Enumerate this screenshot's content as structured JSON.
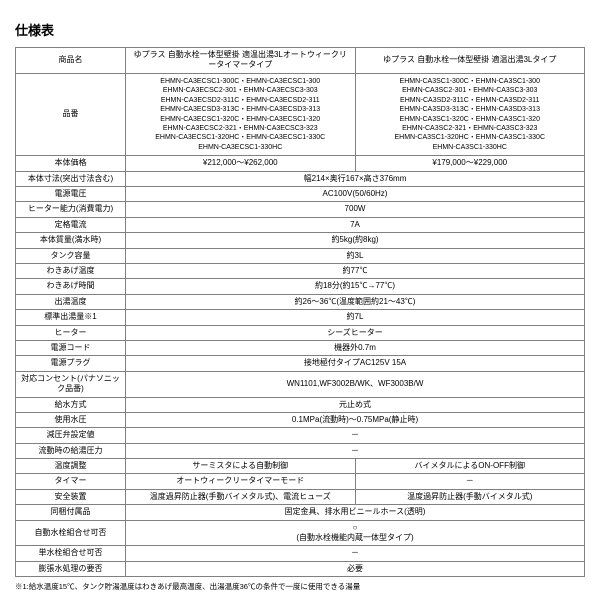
{
  "title": "仕様表",
  "headers": {
    "label": "商品名",
    "col1": "ゆプラス 自動水栓一体型壁掛 適温出湯3Lオートウィークリータイマータイプ",
    "col2": "ゆプラス 自動水栓一体型壁掛 適温出湯3Lタイプ"
  },
  "model": {
    "label": "品番",
    "col1": "EHMN-CA3ECSC1-300C・EHMN-CA3ECSC1-300\nEHMN-CA3ECSC2-301・EHMN-CA3ECSC3-303\nEHMN-CA3ECSD2-311C・EHMN-CA3ECSD2-311\nEHMN-CA3ECSD3-313C・EHMN-CA3ECSD3-313\nEHMN-CA3ECSC1-320C・EHMN-CA3ECSC1-320\nEHMN-CA3ECSC2-321・EHMN-CA3ECSC3-323\nEHMN-CA3ECSC1-320HC・EHMN-CA3ECSC1-330C\nEHMN-CA3ECSC1-330HC",
    "col2": "EHMN-CA3SC1-300C・EHMN-CA3SC1-300\nEHMN-CA3SC2-301・EHMN-CA3SC3-303\nEHMN-CA3SD2-311C・EHMN-CA3SD2-311\nEHMN-CA3SD3-313C・EHMN-CA3SD3-313\nEHMN-CA3SC1-320C・EHMN-CA3SC1-320\nEHMN-CA3SC2-321・EHMN-CA3SC3-323\nEHMN-CA3SC1-320HC・EHMN-CA3SC1-330C\nEHMN-CA3SC1-330HC"
  },
  "rows_split": [
    {
      "label": "本体価格",
      "col1": "¥212,000～¥262,000",
      "col2": "¥179,000～¥229,000"
    }
  ],
  "rows_span": [
    {
      "label": "本体寸法(突出寸法含む)",
      "val": "幅214×奥行167×高さ376mm"
    },
    {
      "label": "電源電圧",
      "val": "AC100V(50/60Hz)"
    },
    {
      "label": "ヒーター能力(消費電力)",
      "val": "700W"
    },
    {
      "label": "定格電流",
      "val": "7A"
    },
    {
      "label": "本体質量(満水時)",
      "val": "約5kg(約8kg)"
    },
    {
      "label": "タンク容量",
      "val": "約3L"
    },
    {
      "label": "わきあげ温度",
      "val": "約77℃"
    },
    {
      "label": "わきあげ時間",
      "val": "約18分(約15℃→77℃)"
    },
    {
      "label": "出湯温度",
      "val": "約26～36℃(温度範囲約21～43℃)"
    },
    {
      "label": "標準出湯量※1",
      "val": "約7L"
    },
    {
      "label": "ヒーター",
      "val": "シーズヒーター"
    },
    {
      "label": "電源コード",
      "val": "機器外0.7m"
    },
    {
      "label": "電源プラグ",
      "val": "接地極付タイプAC125V 15A"
    },
    {
      "label": "対応コンセント(パナソニック品番)",
      "val": "WN1101,WF3002B/WK、WF3003B/W"
    },
    {
      "label": "給水方式",
      "val": "元止め式"
    },
    {
      "label": "使用水圧",
      "val": "0.1MPa(流動時)～0.75MPa(静止時)"
    },
    {
      "label": "減圧弁設定値",
      "val": "－"
    },
    {
      "label": "流動時の給湯圧力",
      "val": "－"
    }
  ],
  "rows_split2": [
    {
      "label": "温度調整",
      "col1": "サーミスタによる自動制御",
      "col2": "バイメタルによるON-OFF制御"
    },
    {
      "label": "タイマー",
      "col1": "オートウィークリータイマーモード",
      "col2": "－"
    },
    {
      "label": "安全装置",
      "col1": "温度過昇防止器(手動バイメタル式)、電流ヒューズ",
      "col2": "温度過昇防止器(手動バイメタル式)"
    }
  ],
  "rows_span2": [
    {
      "label": "同梱付属品",
      "val": "固定金具、排水用ビニールホース(透明)"
    },
    {
      "label": "自動水栓組合せ可否",
      "val": "○\n(自動水栓機能内蔵一体型タイプ)"
    },
    {
      "label": "単水栓組合せ可否",
      "val": "－"
    },
    {
      "label": "膨張水処理の要否",
      "val": "必要"
    }
  ],
  "footnote": "※1:給水温度15℃、タンク貯湯温度はわきあげ最高温度、出湯温度36℃の条件で一度に使用できる湯量"
}
